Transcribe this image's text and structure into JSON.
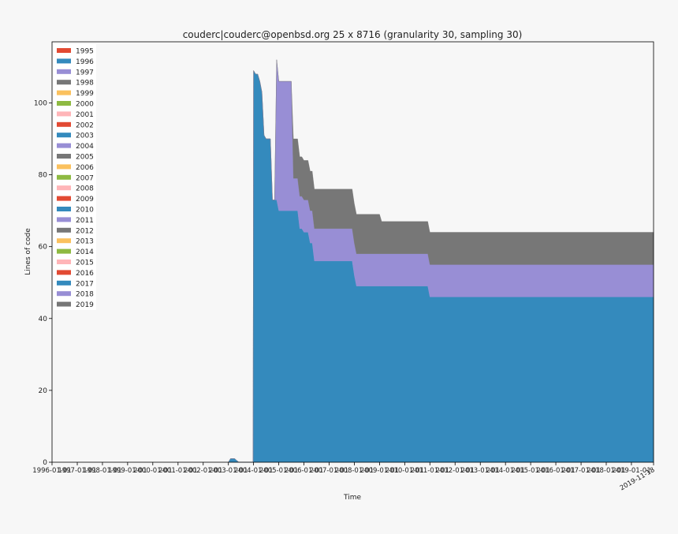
{
  "chart_data": {
    "type": "area",
    "stacked": true,
    "title": "couderc|couderc@openbsd.org 25 x 8716 (granularity 30, sampling 30)",
    "xlabel": "Time",
    "ylabel": "Lines of code",
    "xlim": [
      "1996-01-01",
      "2019-11-18"
    ],
    "ylim": [
      0,
      117
    ],
    "grid": false,
    "legend_position": "top-left",
    "x_tick_labels": [
      "1996-01-01",
      "1997-01-01",
      "1998-01-01",
      "1999-01-01",
      "2000-01-01",
      "2001-01-01",
      "2002-01-01",
      "2003-01-01",
      "2004-01-01",
      "2005-01-01",
      "2006-01-01",
      "2007-01-01",
      "2008-01-01",
      "2009-01-01",
      "2010-01-01",
      "2011-01-01",
      "2012-01-01",
      "2013-01-01",
      "2014-01-01",
      "2015-01-01",
      "2016-01-01",
      "2017-01-01",
      "2018-01-01",
      "2019-01-01"
    ],
    "x_end_label": "2019-11-18",
    "y_ticks": [
      0,
      20,
      40,
      60,
      80,
      100
    ],
    "legend": [
      {
        "label": "1995",
        "color": "#e24a33"
      },
      {
        "label": "1996",
        "color": "#348abd"
      },
      {
        "label": "1997",
        "color": "#988ed5"
      },
      {
        "label": "1998",
        "color": "#777777"
      },
      {
        "label": "1999",
        "color": "#fbc15e"
      },
      {
        "label": "2000",
        "color": "#8eba42"
      },
      {
        "label": "2001",
        "color": "#ffb5b8"
      },
      {
        "label": "2002",
        "color": "#e24a33"
      },
      {
        "label": "2003",
        "color": "#348abd"
      },
      {
        "label": "2004",
        "color": "#988ed5"
      },
      {
        "label": "2005",
        "color": "#777777"
      },
      {
        "label": "2006",
        "color": "#fbc15e"
      },
      {
        "label": "2007",
        "color": "#8eba42"
      },
      {
        "label": "2008",
        "color": "#ffb5b8"
      },
      {
        "label": "2009",
        "color": "#e24a33"
      },
      {
        "label": "2010",
        "color": "#348abd"
      },
      {
        "label": "2011",
        "color": "#988ed5"
      },
      {
        "label": "2012",
        "color": "#777777"
      },
      {
        "label": "2013",
        "color": "#fbc15e"
      },
      {
        "label": "2014",
        "color": "#8eba42"
      },
      {
        "label": "2015",
        "color": "#ffb5b8"
      },
      {
        "label": "2016",
        "color": "#e24a33"
      },
      {
        "label": "2017",
        "color": "#348abd"
      },
      {
        "label": "2018",
        "color": "#988ed5"
      },
      {
        "label": "2019",
        "color": "#777777"
      }
    ],
    "series": [
      {
        "name": "2003",
        "color": "#348abd",
        "points": [
          [
            "2003-01-01",
            0
          ],
          [
            "2003-02-01",
            1
          ],
          [
            "2003-04-01",
            1
          ],
          [
            "2003-06-01",
            0
          ],
          [
            "2003-12-25",
            0
          ],
          [
            "2004-01-01",
            109
          ],
          [
            "2004-02-01",
            108
          ],
          [
            "2004-03-01",
            108
          ],
          [
            "2004-04-01",
            106
          ],
          [
            "2004-05-01",
            103
          ],
          [
            "2004-06-01",
            91
          ],
          [
            "2004-07-01",
            90
          ],
          [
            "2004-09-01",
            90
          ],
          [
            "2004-10-01",
            73
          ],
          [
            "2004-12-01",
            73
          ],
          [
            "2005-01-01",
            70
          ],
          [
            "2005-10-01",
            70
          ],
          [
            "2005-11-01",
            65
          ],
          [
            "2005-12-01",
            65
          ],
          [
            "2006-01-01",
            64
          ],
          [
            "2006-03-01",
            64
          ],
          [
            "2006-04-01",
            61
          ],
          [
            "2006-05-01",
            61
          ],
          [
            "2006-06-01",
            56
          ],
          [
            "2007-12-01",
            56
          ],
          [
            "2008-01-01",
            52
          ],
          [
            "2008-02-01",
            49
          ],
          [
            "2008-03-01",
            49
          ],
          [
            "2010-12-01",
            49
          ],
          [
            "2011-01-01",
            46
          ],
          [
            "2019-11-18",
            46
          ]
        ]
      },
      {
        "name": "2004",
        "color": "#988ed5",
        "points": [
          [
            "2003-01-01",
            0
          ],
          [
            "2004-11-01",
            0
          ],
          [
            "2004-12-01",
            39
          ],
          [
            "2005-01-01",
            36
          ],
          [
            "2005-07-01",
            36
          ],
          [
            "2005-08-01",
            9
          ],
          [
            "2005-10-01",
            9
          ],
          [
            "2005-11-01",
            9
          ],
          [
            "2006-03-01",
            9
          ],
          [
            "2006-04-01",
            9
          ],
          [
            "2006-06-01",
            9
          ],
          [
            "2007-12-01",
            9
          ],
          [
            "2008-01-01",
            9
          ],
          [
            "2008-03-01",
            9
          ],
          [
            "2009-01-01",
            9
          ],
          [
            "2009-02-01",
            9
          ],
          [
            "2010-12-01",
            9
          ],
          [
            "2011-01-01",
            9
          ],
          [
            "2019-11-18",
            9
          ]
        ]
      },
      {
        "name": "2005",
        "color": "#777777",
        "points": [
          [
            "2003-01-01",
            0
          ],
          [
            "2005-07-01",
            0
          ],
          [
            "2005-08-01",
            11
          ],
          [
            "2005-10-01",
            11
          ],
          [
            "2005-11-01",
            11
          ],
          [
            "2006-01-01",
            11
          ],
          [
            "2006-03-01",
            11
          ],
          [
            "2006-04-01",
            11
          ],
          [
            "2006-06-01",
            11
          ],
          [
            "2007-12-01",
            11
          ],
          [
            "2008-01-01",
            11
          ],
          [
            "2008-03-01",
            11
          ],
          [
            "2009-01-01",
            11
          ],
          [
            "2009-02-01",
            9
          ],
          [
            "2010-12-01",
            9
          ],
          [
            "2011-01-01",
            9
          ],
          [
            "2019-11-18",
            9
          ]
        ]
      }
    ]
  }
}
